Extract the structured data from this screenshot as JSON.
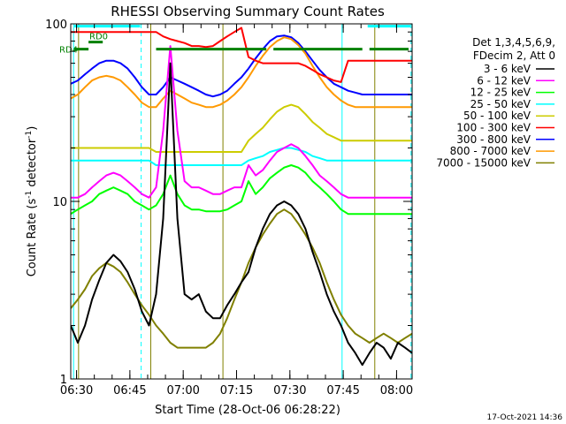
{
  "chart_data": {
    "type": "line",
    "title": "RHESSI Observing Summary Count Rates",
    "xlabel": "Start Time (28-Oct-06 06:28:22)",
    "ylabel": "Count Rate (s",
    "ylabel_sup": "-1",
    "ylabel_tail": " detector",
    "ylabel_sup2": "-1",
    "ylabel_end": ")",
    "yscale": "log",
    "ylim": [
      1,
      100
    ],
    "xlim_minutes": [
      0,
      96
    ],
    "x_ticks": [
      {
        "minutes": 1.63,
        "label": "06:30"
      },
      {
        "minutes": 16.63,
        "label": "06:45"
      },
      {
        "minutes": 31.63,
        "label": "07:00"
      },
      {
        "minutes": 46.63,
        "label": "07:15"
      },
      {
        "minutes": 61.63,
        "label": "07:30"
      },
      {
        "minutes": 76.63,
        "label": "07:45"
      },
      {
        "minutes": 91.63,
        "label": "08:00"
      }
    ],
    "y_ticks": [
      {
        "value": 1,
        "label": "1"
      },
      {
        "value": 10,
        "label": "10"
      },
      {
        "value": 100,
        "label": "100"
      }
    ],
    "legend_header": [
      "Det 1,3,4,5,6,9,",
      "FDecim 2, Att 0"
    ],
    "legend_placement": "top-right outside",
    "series": [
      {
        "name": "3 - 6 keV",
        "color": "#000000",
        "x": [
          0,
          2,
          4,
          6,
          8,
          10,
          12,
          14,
          16,
          18,
          20,
          22,
          24,
          26,
          28,
          30,
          32,
          34,
          36,
          38,
          40,
          42,
          44,
          46,
          48,
          50,
          52,
          54,
          56,
          58,
          60,
          62,
          64,
          66,
          68,
          70,
          72,
          74,
          76,
          78,
          80,
          82,
          84,
          86,
          88,
          90,
          92,
          94,
          96
        ],
        "y": [
          2,
          1.6,
          2,
          2.8,
          3.6,
          4.5,
          5,
          4.6,
          4,
          3.2,
          2.4,
          2,
          3,
          8,
          60,
          8,
          3,
          2.8,
          3,
          2.4,
          2.2,
          2.2,
          2.6,
          3,
          3.5,
          4,
          5.5,
          7,
          8.5,
          9.5,
          10,
          9.5,
          8.5,
          7,
          5.2,
          4,
          3,
          2.4,
          2,
          1.6,
          1.4,
          1.2,
          1.4,
          1.6,
          1.5,
          1.3,
          1.6,
          1.5,
          1.4
        ]
      },
      {
        "name": "6 - 12 keV",
        "color": "#ff00ff",
        "x": [
          0,
          2,
          4,
          6,
          8,
          10,
          12,
          14,
          16,
          18,
          20,
          22,
          24,
          26,
          28,
          30,
          32,
          34,
          36,
          38,
          40,
          42,
          44,
          46,
          48,
          50,
          52,
          54,
          56,
          58,
          60,
          62,
          64,
          66,
          68,
          70,
          72,
          74,
          76,
          78,
          80,
          82,
          84,
          86,
          88,
          90,
          92,
          94,
          96
        ],
        "y": [
          10.5,
          10.5,
          11,
          12,
          13,
          14,
          14.5,
          14,
          13,
          12,
          11,
          10.5,
          12,
          25,
          75,
          25,
          13,
          12,
          12,
          11.5,
          11,
          11,
          11.5,
          12,
          12,
          16,
          14,
          15,
          17,
          19,
          20,
          21,
          20,
          18,
          16,
          14,
          13,
          12,
          11,
          10.5,
          10.5,
          10.5,
          10.5,
          10.5,
          10.5,
          10.5,
          10.5,
          10.5,
          10.5
        ]
      },
      {
        "name": "12 - 25 keV",
        "color": "#00ff00",
        "x": [
          0,
          2,
          4,
          6,
          8,
          10,
          12,
          14,
          16,
          18,
          20,
          22,
          24,
          26,
          28,
          30,
          32,
          34,
          36,
          38,
          40,
          42,
          44,
          46,
          48,
          50,
          52,
          54,
          56,
          58,
          60,
          62,
          64,
          66,
          68,
          70,
          72,
          74,
          76,
          78,
          80,
          82,
          84,
          86,
          88,
          90,
          92,
          94,
          96
        ],
        "y": [
          8.5,
          9,
          9.5,
          10,
          11,
          11.5,
          12,
          11.5,
          11,
          10,
          9.5,
          9,
          9.5,
          11,
          14,
          11,
          9.5,
          9,
          9,
          8.8,
          8.8,
          8.8,
          9,
          9.5,
          10,
          13,
          11,
          12,
          13.5,
          14.5,
          15.5,
          16,
          15.5,
          14.5,
          13,
          12,
          11,
          10,
          9,
          8.5,
          8.5,
          8.5,
          8.5,
          8.5,
          8.5,
          8.5,
          8.5,
          8.5,
          8.5
        ]
      },
      {
        "name": "25 - 50 keV",
        "color": "#00ffff",
        "x": [
          0,
          2,
          4,
          6,
          8,
          10,
          12,
          14,
          16,
          18,
          20,
          22,
          24,
          26,
          28,
          30,
          32,
          34,
          36,
          38,
          40,
          42,
          44,
          46,
          48,
          50,
          52,
          54,
          56,
          58,
          60,
          62,
          64,
          66,
          68,
          70,
          72,
          74,
          76,
          78,
          80,
          82,
          84,
          86,
          88,
          90,
          92,
          94,
          96
        ],
        "y": [
          17,
          17,
          17,
          17,
          17,
          17,
          17,
          17,
          17,
          17,
          17,
          17,
          16,
          16,
          16,
          16,
          16,
          16,
          16,
          16,
          16,
          16,
          16,
          16,
          16,
          17,
          17.5,
          18,
          19,
          19.5,
          20,
          20,
          19.5,
          19,
          18,
          17.5,
          17,
          17,
          17,
          17,
          17,
          17,
          17,
          17,
          17,
          17,
          17,
          17,
          17
        ]
      },
      {
        "name": "50 - 100 keV",
        "color": "#cccc00",
        "x": [
          0,
          2,
          4,
          6,
          8,
          10,
          12,
          14,
          16,
          18,
          20,
          22,
          24,
          26,
          28,
          30,
          32,
          34,
          36,
          38,
          40,
          42,
          44,
          46,
          48,
          50,
          52,
          54,
          56,
          58,
          60,
          62,
          64,
          66,
          68,
          70,
          72,
          74,
          76,
          78,
          80,
          82,
          84,
          86,
          88,
          90,
          92,
          94,
          96
        ],
        "y": [
          20,
          20,
          20,
          20,
          20,
          20,
          20,
          20,
          20,
          20,
          20,
          20,
          19,
          19,
          19,
          19,
          19,
          19,
          19,
          19,
          19,
          19,
          19,
          19,
          19,
          22,
          24,
          26,
          29,
          32,
          34,
          35,
          34,
          31,
          28,
          26,
          24,
          23,
          22,
          22,
          22,
          22,
          22,
          22,
          22,
          22,
          22,
          22,
          22
        ]
      },
      {
        "name": "100 - 300 keV",
        "color": "#ff0000",
        "x": [
          0,
          2,
          4,
          6,
          8,
          10,
          12,
          14,
          16,
          18,
          20,
          22,
          24,
          26,
          28,
          30,
          32,
          34,
          36,
          38,
          40,
          42,
          44,
          46,
          48,
          50,
          52,
          54,
          56,
          58,
          60,
          62,
          64,
          66,
          68,
          70,
          72,
          74,
          76,
          78,
          80,
          82,
          84,
          86,
          88,
          90,
          92,
          94,
          96
        ],
        "y": [
          90,
          90,
          90,
          90,
          90,
          90,
          90,
          90,
          90,
          90,
          90,
          90,
          90,
          85,
          82,
          80,
          78,
          75,
          75,
          74,
          75,
          80,
          85,
          90,
          95,
          65,
          62,
          60,
          60,
          60,
          60,
          60,
          60,
          58,
          55,
          52,
          50,
          48,
          47,
          62,
          62,
          62,
          62,
          62,
          62,
          62,
          62,
          62,
          62
        ]
      },
      {
        "name": "300 - 800 keV",
        "color": "#0000ff",
        "x": [
          0,
          2,
          4,
          6,
          8,
          10,
          12,
          14,
          16,
          18,
          20,
          22,
          24,
          26,
          28,
          30,
          32,
          34,
          36,
          38,
          40,
          42,
          44,
          46,
          48,
          50,
          52,
          54,
          56,
          58,
          60,
          62,
          64,
          66,
          68,
          70,
          72,
          74,
          76,
          78,
          80,
          82,
          84,
          86,
          88,
          90,
          92,
          94,
          96
        ],
        "y": [
          46,
          48,
          52,
          56,
          60,
          62,
          62,
          60,
          56,
          50,
          44,
          40,
          40,
          44,
          50,
          48,
          46,
          44,
          42,
          40,
          39,
          40,
          42,
          46,
          50,
          56,
          64,
          72,
          80,
          85,
          86,
          84,
          78,
          70,
          62,
          55,
          50,
          46,
          44,
          42,
          41,
          40,
          40,
          40,
          40,
          40,
          40,
          40,
          40
        ]
      },
      {
        "name": "800 - 7000 keV",
        "color": "#ff9900",
        "x": [
          0,
          2,
          4,
          6,
          8,
          10,
          12,
          14,
          16,
          18,
          20,
          22,
          24,
          26,
          28,
          30,
          32,
          34,
          36,
          38,
          40,
          42,
          44,
          46,
          48,
          50,
          52,
          54,
          56,
          58,
          60,
          62,
          64,
          66,
          68,
          70,
          72,
          74,
          76,
          78,
          80,
          82,
          84,
          86,
          88,
          90,
          92,
          94,
          96
        ],
        "y": [
          38,
          40,
          44,
          48,
          50,
          51,
          50,
          48,
          44,
          40,
          36,
          34,
          34,
          38,
          42,
          40,
          38,
          36,
          35,
          34,
          34,
          35,
          37,
          40,
          44,
          50,
          58,
          66,
          74,
          80,
          84,
          82,
          76,
          68,
          58,
          50,
          44,
          40,
          37,
          35,
          34,
          34,
          34,
          34,
          34,
          34,
          34,
          34,
          34
        ]
      },
      {
        "name": "7000 - 15000 keV",
        "color": "#808000",
        "x": [
          0,
          2,
          4,
          6,
          8,
          10,
          12,
          14,
          16,
          18,
          20,
          22,
          24,
          26,
          28,
          30,
          32,
          34,
          36,
          38,
          40,
          42,
          44,
          46,
          48,
          50,
          52,
          54,
          56,
          58,
          60,
          62,
          64,
          66,
          68,
          70,
          72,
          74,
          76,
          78,
          80,
          82,
          84,
          86,
          88,
          90,
          92,
          94,
          96
        ],
        "y": [
          2.5,
          2.8,
          3.2,
          3.8,
          4.2,
          4.5,
          4.3,
          4,
          3.5,
          3,
          2.6,
          2.3,
          2,
          1.8,
          1.6,
          1.5,
          1.5,
          1.5,
          1.5,
          1.5,
          1.6,
          1.8,
          2.2,
          2.8,
          3.5,
          4.5,
          5.5,
          6.5,
          7.5,
          8.5,
          9,
          8.5,
          7.5,
          6.5,
          5.5,
          4.5,
          3.5,
          2.8,
          2.3,
          2,
          1.8,
          1.7,
          1.6,
          1.7,
          1.8,
          1.7,
          1.6,
          1.7,
          1.8
        ]
      }
    ],
    "attenuator_bars": [
      {
        "label": "",
        "color": "#00ffff",
        "y": 97,
        "segments": [
          [
            1,
            19.5
          ],
          [
            83.5,
            95.5
          ]
        ]
      },
      {
        "label": "RD0",
        "color": "#008000",
        "y": 79,
        "segments": [
          [
            5,
            9
          ]
        ]
      },
      {
        "label": "RD4",
        "color": "#008000",
        "y": 72,
        "segments": [
          [
            1,
            5
          ],
          [
            24,
            55
          ],
          [
            57,
            82
          ],
          [
            84,
            95
          ]
        ]
      }
    ],
    "vlines": {
      "solid_cyan": [
        0.8,
        76.3
      ],
      "dashed_cyan": [
        19.8,
        95.7
      ],
      "solid_olive": [
        2.2,
        22.5,
        42.8,
        85.5
      ]
    },
    "grid": false,
    "footer_timestamp": "17-Oct-2021 14:36"
  }
}
